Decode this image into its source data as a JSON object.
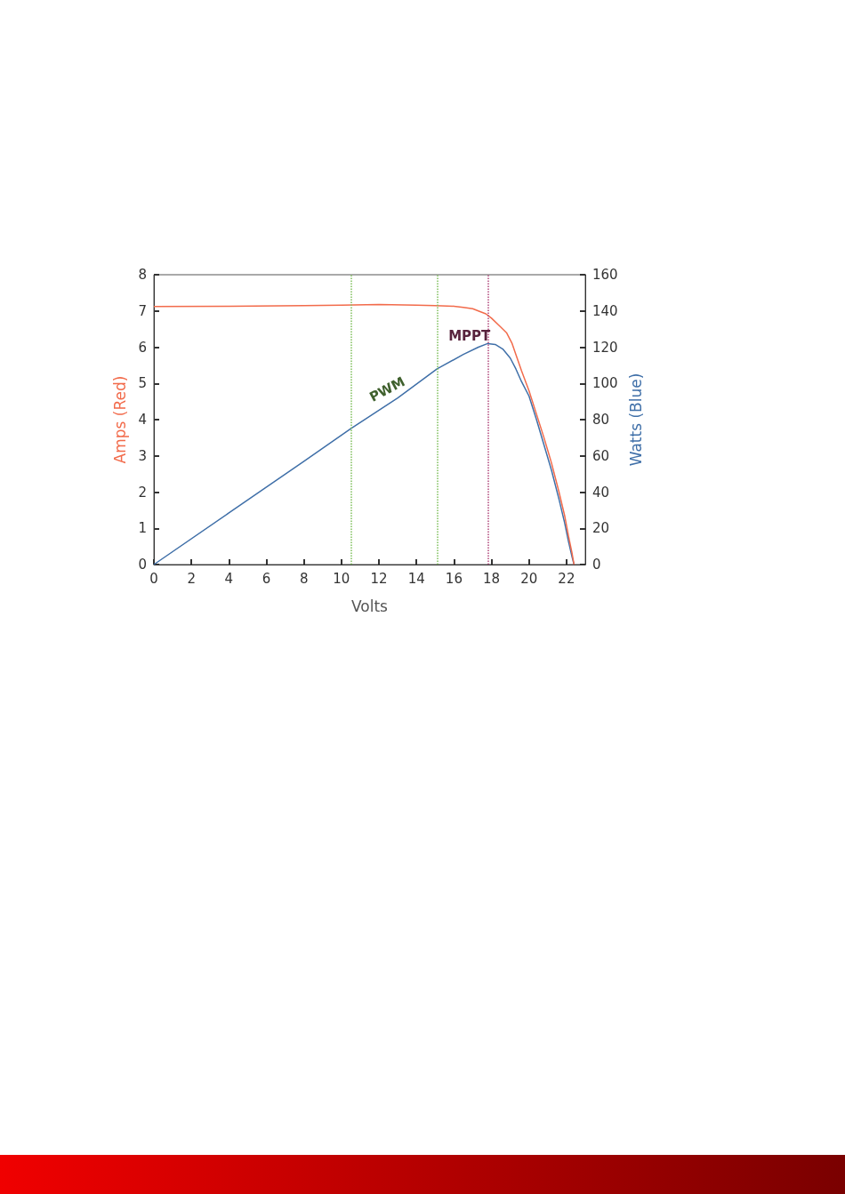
{
  "chart_data": {
    "type": "line",
    "xlabel": "Volts",
    "ylabel": "Amps (Red)",
    "y2label": "Watts (Blue)",
    "series": [
      {
        "color": "#f26b4b",
        "x": [
          0,
          4,
          8,
          10,
          12,
          14,
          15,
          16,
          16.5,
          17,
          17.3,
          17.7,
          18,
          18.4,
          18.8,
          19.1,
          19.3,
          19.6,
          20,
          20.4,
          20.8,
          21.2,
          21.6,
          21.9,
          22.1,
          22.3,
          22.4
        ],
        "values": [
          7.12,
          7.13,
          7.15,
          7.16,
          7.18,
          7.16,
          7.15,
          7.13,
          7.1,
          7.06,
          7.0,
          6.92,
          6.8,
          6.6,
          6.4,
          6.1,
          5.8,
          5.35,
          4.8,
          4.15,
          3.5,
          2.8,
          2.0,
          1.35,
          0.8,
          0.3,
          0
        ]
      },
      {
        "color": "#3f6fa8",
        "axis": "y2",
        "x": [
          0,
          4,
          8,
          10.5,
          13,
          15.1,
          16.5,
          17.3,
          17.8,
          18.2,
          18.6,
          19,
          19.3,
          19.6,
          20,
          20.4,
          20.8,
          21.2,
          21.6,
          21.9,
          22.1,
          22.3,
          22.4
        ],
        "values": [
          0,
          28.5,
          57,
          75,
          92,
          108,
          116,
          120,
          122,
          121.5,
          119,
          114,
          108,
          101,
          93,
          80,
          66,
          52,
          36,
          23,
          13,
          4,
          0
        ]
      }
    ],
    "xlim": [
      0,
      23
    ],
    "xticks": [
      0,
      2,
      4,
      6,
      8,
      10,
      12,
      14,
      16,
      18,
      20,
      22
    ],
    "ylim": [
      0,
      8
    ],
    "yticks": [
      0,
      1,
      2,
      3,
      4,
      5,
      6,
      7,
      8
    ],
    "y2lim": [
      0,
      160
    ],
    "y2ticks": [
      0,
      20,
      40,
      60,
      80,
      100,
      120,
      140,
      160
    ],
    "ref_lines": [
      {
        "axis": "x",
        "value": 10.5,
        "color": "#7dbf5a",
        "line_style": "dotted"
      },
      {
        "axis": "x",
        "value": 15.1,
        "color": "#7dbf5a",
        "line_style": "dotted"
      },
      {
        "axis": "x",
        "value": 17.8,
        "color": "#b0457a",
        "line_style": "dotted"
      }
    ],
    "annotations": [
      {
        "text": "PWM",
        "x": 13,
        "y": 4.6
      },
      {
        "text": "MPPT",
        "x": 17.8,
        "y": 6.3
      }
    ],
    "grid": false,
    "marker": "none",
    "line_style": "solid"
  }
}
